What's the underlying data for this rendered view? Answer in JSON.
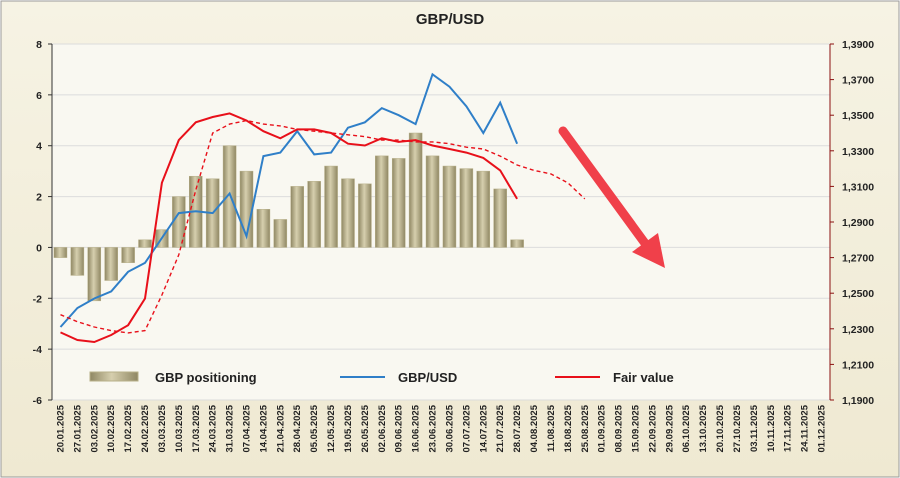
{
  "chart_data": {
    "type": "bar",
    "title": "GBP/USD",
    "categories": [
      "20.01.2025",
      "27.01.2025",
      "03.02.2025",
      "10.02.2025",
      "17.02.2025",
      "24.02.2025",
      "03.03.2025",
      "10.03.2025",
      "17.03.2025",
      "24.03.2025",
      "31.03.2025",
      "07.04.2025",
      "14.04.2025",
      "21.04.2025",
      "28.04.2025",
      "05.05.2025",
      "12.05.2025",
      "19.05.2025",
      "26.05.2025",
      "02.06.2025",
      "09.06.2025",
      "16.06.2025",
      "23.06.2025",
      "30.06.2025",
      "07.07.2025",
      "14.07.2025",
      "21.07.2025",
      "28.07.2025",
      "04.08.2025",
      "11.08.2025",
      "18.08.2025",
      "25.08.2025",
      "01.09.2025",
      "08.09.2025",
      "15.09.2025",
      "22.09.2025",
      "29.09.2025",
      "06.10.2025",
      "13.10.2025",
      "20.10.2025",
      "27.10.2025",
      "03.11.2025",
      "10.11.2025",
      "17.11.2025",
      "24.11.2025",
      "01.12.2025"
    ],
    "series": [
      {
        "name": "GBP positioning",
        "type": "bar",
        "color": "#b7af88",
        "values": [
          -0.4,
          -1.1,
          -2.1,
          -1.3,
          -0.6,
          0.3,
          0.7,
          2.0,
          2.8,
          2.7,
          4.0,
          3.0,
          1.5,
          1.1,
          2.4,
          2.6,
          3.2,
          2.7,
          2.5,
          3.6,
          3.5,
          4.5,
          3.6,
          3.2,
          3.1,
          3.0,
          2.3,
          0.3,
          null,
          null,
          null,
          null,
          null,
          null,
          null,
          null,
          null,
          null,
          null,
          null,
          null,
          null,
          null,
          null,
          null,
          null
        ]
      },
      {
        "name": "GBP/USD",
        "type": "line",
        "axis": "y2",
        "color": "#2f7fc8",
        "values": [
          1.231,
          1.2417,
          1.247,
          1.251,
          1.262,
          1.267,
          1.281,
          1.295,
          1.296,
          1.295,
          1.306,
          1.282,
          1.327,
          1.329,
          1.341,
          1.328,
          1.329,
          1.343,
          1.346,
          1.354,
          1.35,
          1.345,
          1.373,
          1.366,
          1.355,
          1.34,
          1.357,
          1.334,
          null,
          null,
          null,
          null,
          null,
          null,
          null,
          null,
          null,
          null,
          null,
          null,
          null,
          null,
          null,
          null,
          null,
          null
        ]
      },
      {
        "name": "Fair value",
        "type": "line",
        "axis": "y2",
        "color": "#e8101a",
        "values": [
          1.228,
          1.2237,
          1.2226,
          1.2265,
          1.232,
          1.247,
          1.312,
          1.336,
          1.346,
          1.349,
          1.351,
          1.347,
          1.341,
          1.337,
          1.342,
          1.342,
          1.34,
          1.334,
          1.333,
          1.337,
          1.335,
          1.336,
          1.333,
          1.331,
          1.329,
          1.326,
          1.319,
          1.303,
          null,
          null,
          null,
          null,
          null,
          null,
          null,
          null,
          null,
          null,
          null,
          null,
          null,
          null,
          null,
          null,
          null,
          null
        ]
      },
      {
        "type": "line",
        "axis": "y2",
        "color": "#e8101a",
        "dash": true,
        "values": [
          1.2379,
          1.234,
          1.231,
          1.229,
          1.2277,
          1.229,
          1.249,
          1.2716,
          1.308,
          1.34,
          1.345,
          1.347,
          1.345,
          1.344,
          1.342,
          1.341,
          1.34,
          1.339,
          1.338,
          1.336,
          1.336,
          1.335,
          1.335,
          1.334,
          1.332,
          1.331,
          1.327,
          1.322,
          1.319,
          1.317,
          1.312,
          1.303,
          null,
          null,
          null,
          null,
          null,
          null,
          null,
          null,
          null,
          null,
          null,
          null,
          null,
          null
        ]
      }
    ],
    "ylim": [
      -6,
      8
    ],
    "yticks": [
      -6,
      -4,
      -2,
      0,
      2,
      4,
      6,
      8
    ],
    "y2lim": [
      1.19,
      1.39
    ],
    "y2ticks": [
      {
        "value": 1.19,
        "label": "1,1900"
      },
      {
        "value": 1.21,
        "label": "1,2100"
      },
      {
        "value": 1.23,
        "label": "1,2300"
      },
      {
        "value": 1.25,
        "label": "1,2500"
      },
      {
        "value": 1.27,
        "label": "1,2700"
      },
      {
        "value": 1.29,
        "label": "1,2900"
      },
      {
        "value": 1.31,
        "label": "1,3100"
      },
      {
        "value": 1.33,
        "label": "1,3300"
      },
      {
        "value": 1.35,
        "label": "1,3500"
      },
      {
        "value": 1.37,
        "label": "1,3700"
      },
      {
        "value": 1.39,
        "label": "1,3900"
      }
    ],
    "grid": true
  }
}
